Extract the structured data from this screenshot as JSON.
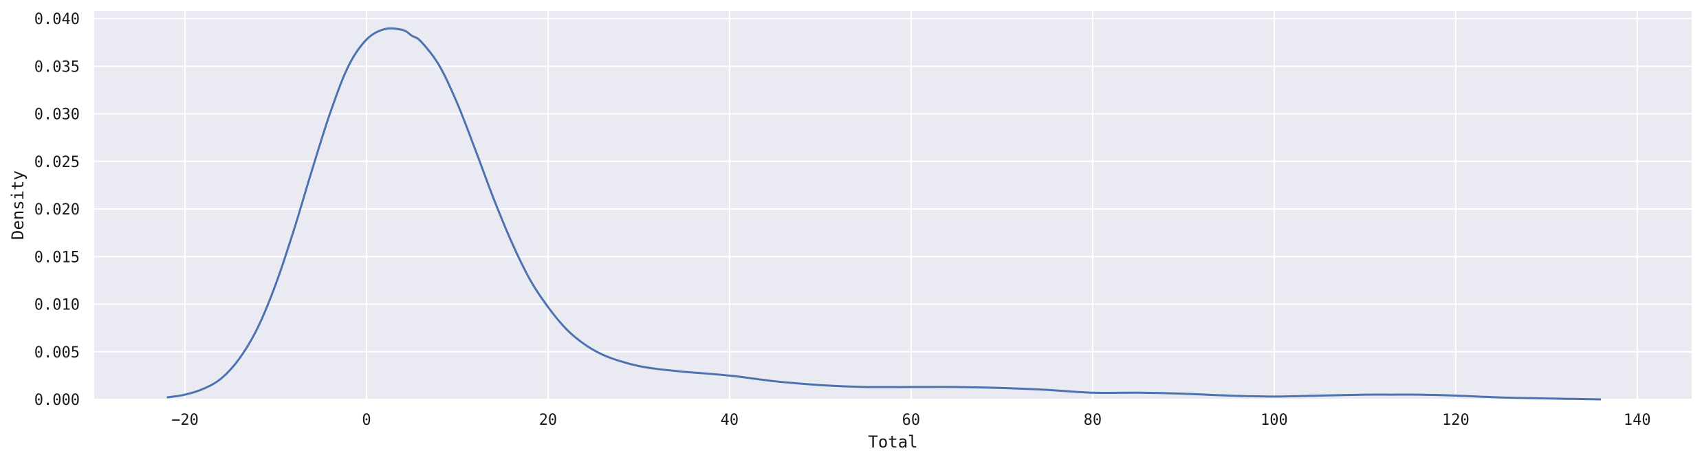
{
  "chart_data": {
    "type": "line",
    "title": "",
    "xlabel": "Total",
    "ylabel": "Density",
    "xlim": [
      -30,
      146
    ],
    "ylim": [
      0,
      0.0408
    ],
    "x_ticks": [
      -20,
      0,
      20,
      40,
      60,
      80,
      100,
      120,
      140
    ],
    "x_tick_labels": [
      "−20",
      "0",
      "20",
      "40",
      "60",
      "80",
      "100",
      "120",
      "140"
    ],
    "y_ticks": [
      0,
      0.005,
      0.01,
      0.015,
      0.02,
      0.025,
      0.03,
      0.035,
      0.04
    ],
    "y_tick_labels": [
      "0.000",
      "0.005",
      "0.010",
      "0.015",
      "0.020",
      "0.025",
      "0.030",
      "0.035",
      "0.040"
    ],
    "grid": true,
    "colors": {
      "background": "#eaeaf2",
      "grid": "#ffffff",
      "line": "#4c72b0"
    },
    "series": [
      {
        "x": [
          -22,
          -20,
          -18,
          -16,
          -14,
          -12,
          -10,
          -8,
          -6,
          -4,
          -2,
          0,
          2,
          4,
          5,
          6,
          8,
          10,
          12,
          14,
          16,
          18,
          20,
          22,
          24,
          26,
          28,
          30,
          32,
          35,
          40,
          45,
          50,
          55,
          60,
          65,
          70,
          75,
          80,
          85,
          90,
          95,
          100,
          105,
          110,
          113,
          116,
          120,
          125,
          130,
          136
        ],
        "y": [
          0.0002,
          0.0005,
          0.0011,
          0.0022,
          0.0043,
          0.0075,
          0.0121,
          0.0178,
          0.0241,
          0.0301,
          0.035,
          0.0378,
          0.0389,
          0.0388,
          0.0382,
          0.0376,
          0.0351,
          0.0311,
          0.0262,
          0.0211,
          0.0165,
          0.0126,
          0.0097,
          0.0074,
          0.0058,
          0.0047,
          0.004,
          0.0035,
          0.0032,
          0.0029,
          0.0025,
          0.0019,
          0.0015,
          0.0013,
          0.0013,
          0.0013,
          0.0012,
          0.001,
          0.0007,
          0.0007,
          0.0006,
          0.0004,
          0.0003,
          0.0004,
          0.0005,
          0.0005,
          0.0005,
          0.0004,
          0.0002,
          0.0001,
          0.0
        ]
      }
    ]
  }
}
